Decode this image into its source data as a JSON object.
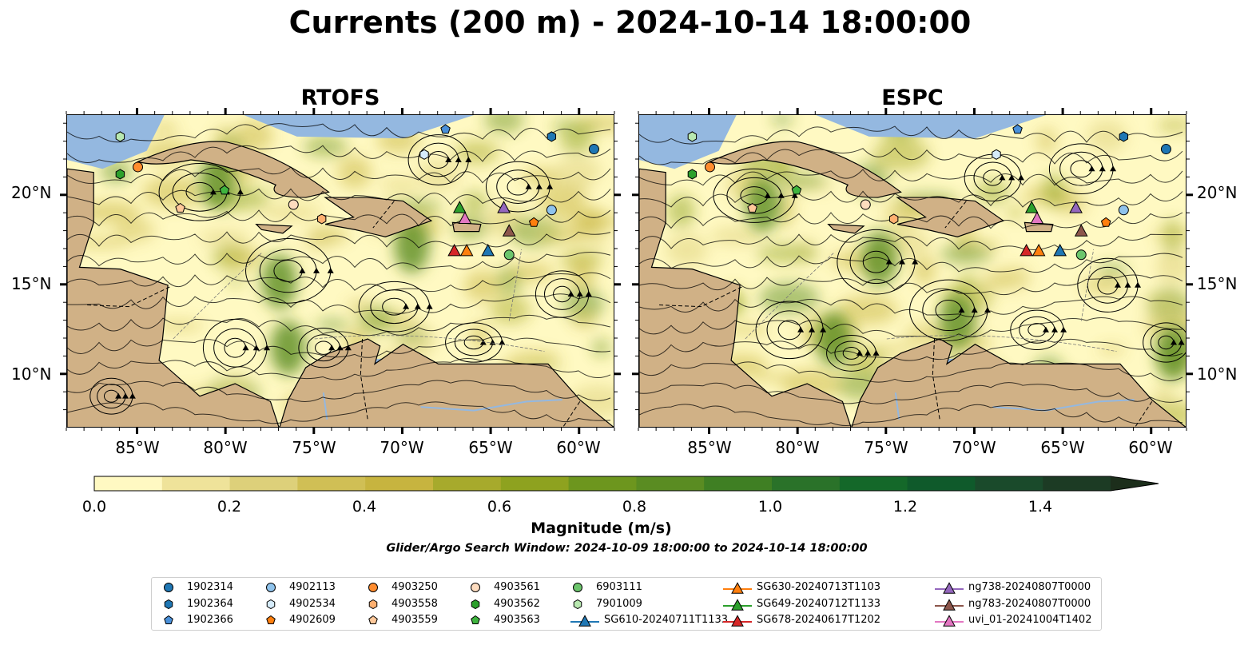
{
  "title": "Currents (200 m) - 2024-10-14 18:00:00",
  "panels": [
    {
      "title": "RTOFS"
    },
    {
      "title": "ESPC"
    }
  ],
  "axes": {
    "lat_labels": [
      "20°N",
      "15°N",
      "10°N"
    ],
    "lon_labels": [
      "85°W",
      "80°W",
      "75°W",
      "70°W",
      "65°W",
      "60°W"
    ],
    "lon_range": [
      -89,
      -58
    ],
    "lat_range": [
      7,
      24.5
    ]
  },
  "colorbar": {
    "title": "Magnitude (m/s)",
    "ticks": [
      "0.0",
      "0.2",
      "0.4",
      "0.6",
      "0.8",
      "1.0",
      "1.2",
      "1.4"
    ],
    "colors": [
      "#fff9c2",
      "#efe39a",
      "#ddd07a",
      "#d0bf55",
      "#c7b43f",
      "#a7aa2c",
      "#8ea21f",
      "#6d961e",
      "#5a8c22",
      "#3f7f23",
      "#2a7229",
      "#146829",
      "#0f5a2b",
      "#1a4a2b",
      "#1c3b24",
      "#1c2e1b"
    ]
  },
  "search_window": "Glider/Argo Search Window: 2024-10-09 18:00:00 to 2024-10-14 18:00:00",
  "legend": [
    {
      "label": "1902314",
      "marker": "circle",
      "color": "#1f77b4"
    },
    {
      "label": "1902364",
      "marker": "hexagon",
      "color": "#1f77b4"
    },
    {
      "label": "1902366",
      "marker": "pentagon",
      "color": "#4a90d9"
    },
    {
      "label": "4902113",
      "marker": "circle",
      "color": "#8fc3ec"
    },
    {
      "label": "4902534",
      "marker": "hexagon",
      "color": "#d6ecfb"
    },
    {
      "label": "4902609",
      "marker": "pentagon",
      "color": "#ff7f0e"
    },
    {
      "label": "4903250",
      "marker": "circle",
      "color": "#ff8c2e"
    },
    {
      "label": "4903558",
      "marker": "hexagon",
      "color": "#ffb070"
    },
    {
      "label": "4903559",
      "marker": "pentagon",
      "color": "#ffc89a"
    },
    {
      "label": "4903561",
      "marker": "circle",
      "color": "#fddcbf"
    },
    {
      "label": "4903562",
      "marker": "hexagon",
      "color": "#2ca02c"
    },
    {
      "label": "4903563",
      "marker": "pentagon",
      "color": "#3fb43f"
    },
    {
      "label": "6903111",
      "marker": "circle",
      "color": "#6cc56c"
    },
    {
      "label": "7901009",
      "marker": "hexagon",
      "color": "#b8e8b0"
    },
    {
      "label": "SG610-20240711T1133",
      "marker": "triangle",
      "color": "#1f77b4"
    },
    {
      "label": "SG630-20240713T1103",
      "marker": "triangle",
      "color": "#ff7f0e"
    },
    {
      "label": "SG649-20240712T1133",
      "marker": "triangle",
      "color": "#2ca02c"
    },
    {
      "label": "SG678-20240617T1202",
      "marker": "triangle",
      "color": "#d62728"
    },
    {
      "label": "ng738-20240807T0000",
      "marker": "triangle",
      "color": "#9467bd"
    },
    {
      "label": "ng783-20240807T0000",
      "marker": "triangle",
      "color": "#8c564b"
    },
    {
      "label": "uvi_01-20241004T1402",
      "marker": "triangle",
      "color": "#e377c2"
    }
  ],
  "platforms": {
    "RTOFS": [
      {
        "id": "1902314",
        "lon": -59.2,
        "lat": 22.6
      },
      {
        "id": "1902364",
        "lon": -61.6,
        "lat": 23.3
      },
      {
        "id": "1902366",
        "lon": -67.6,
        "lat": 23.7
      },
      {
        "id": "4902113",
        "lon": -61.6,
        "lat": 19.2
      },
      {
        "id": "4902534",
        "lon": -68.8,
        "lat": 22.3
      },
      {
        "id": "4902609",
        "lon": -62.6,
        "lat": 18.5
      },
      {
        "id": "4903250",
        "lon": -85.0,
        "lat": 21.6
      },
      {
        "id": "4903558",
        "lon": -74.6,
        "lat": 18.7
      },
      {
        "id": "4903559",
        "lon": -82.6,
        "lat": 19.3
      },
      {
        "id": "4903561",
        "lon": -76.2,
        "lat": 19.5
      },
      {
        "id": "4903562",
        "lon": -86.0,
        "lat": 21.2
      },
      {
        "id": "4903563",
        "lon": -80.1,
        "lat": 20.3
      },
      {
        "id": "6903111",
        "lon": -64.0,
        "lat": 16.7
      },
      {
        "id": "7901009",
        "lon": -86.0,
        "lat": 23.3
      },
      {
        "id": "SG610-20240711T1133",
        "lon": -65.2,
        "lat": 16.9
      },
      {
        "id": "SG630-20240713T1103",
        "lon": -66.4,
        "lat": 16.9
      },
      {
        "id": "SG649-20240712T1133",
        "lon": -66.8,
        "lat": 19.3
      },
      {
        "id": "SG678-20240617T1202",
        "lon": -67.1,
        "lat": 16.9
      },
      {
        "id": "ng738-20240807T0000",
        "lon": -64.3,
        "lat": 19.3
      },
      {
        "id": "ng783-20240807T0000",
        "lon": -64.0,
        "lat": 18.0
      },
      {
        "id": "uvi_01-20241004T1402",
        "lon": -66.5,
        "lat": 18.7
      }
    ],
    "ESPC": [
      {
        "id": "1902314",
        "lon": -59.2,
        "lat": 22.6
      },
      {
        "id": "1902364",
        "lon": -61.6,
        "lat": 23.3
      },
      {
        "id": "1902366",
        "lon": -67.6,
        "lat": 23.7
      },
      {
        "id": "4902113",
        "lon": -61.6,
        "lat": 19.2
      },
      {
        "id": "4902534",
        "lon": -68.8,
        "lat": 22.3
      },
      {
        "id": "4902609",
        "lon": -62.6,
        "lat": 18.5
      },
      {
        "id": "4903250",
        "lon": -85.0,
        "lat": 21.6
      },
      {
        "id": "4903558",
        "lon": -74.6,
        "lat": 18.7
      },
      {
        "id": "4903559",
        "lon": -82.6,
        "lat": 19.3
      },
      {
        "id": "4903561",
        "lon": -76.2,
        "lat": 19.5
      },
      {
        "id": "4903562",
        "lon": -86.0,
        "lat": 21.2
      },
      {
        "id": "4903563",
        "lon": -80.1,
        "lat": 20.3
      },
      {
        "id": "6903111",
        "lon": -64.0,
        "lat": 16.7
      },
      {
        "id": "7901009",
        "lon": -86.0,
        "lat": 23.3
      },
      {
        "id": "SG610-20240711T1133",
        "lon": -65.2,
        "lat": 16.9
      },
      {
        "id": "SG630-20240713T1103",
        "lon": -66.4,
        "lat": 16.9
      },
      {
        "id": "SG649-20240712T1133",
        "lon": -66.8,
        "lat": 19.3
      },
      {
        "id": "SG678-20240617T1202",
        "lon": -67.1,
        "lat": 16.9
      },
      {
        "id": "ng738-20240807T0000",
        "lon": -64.3,
        "lat": 19.3
      },
      {
        "id": "ng783-20240807T0000",
        "lon": -64.0,
        "lat": 18.0
      },
      {
        "id": "uvi_01-20241004T1402",
        "lon": -66.5,
        "lat": 18.7
      }
    ]
  }
}
